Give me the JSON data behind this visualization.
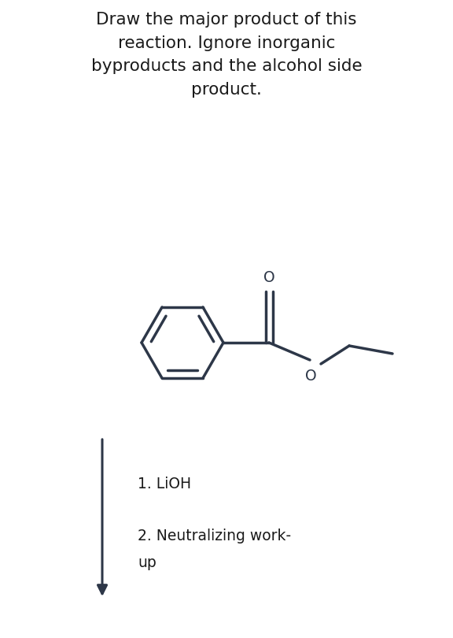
{
  "title_lines": [
    "Draw the major product of this",
    "reaction. Ignore inorganic",
    "byproducts and the alcohol side",
    "product."
  ],
  "bg_color": "#ffffff",
  "mol_color": "#2d3748",
  "line_width": 2.5,
  "title_fontsize": 15.5,
  "reagent1": "1. LiOH",
  "reagent2": "2. Neutralizing work-",
  "reagent3": "up",
  "reagent_fontsize": 13.5
}
